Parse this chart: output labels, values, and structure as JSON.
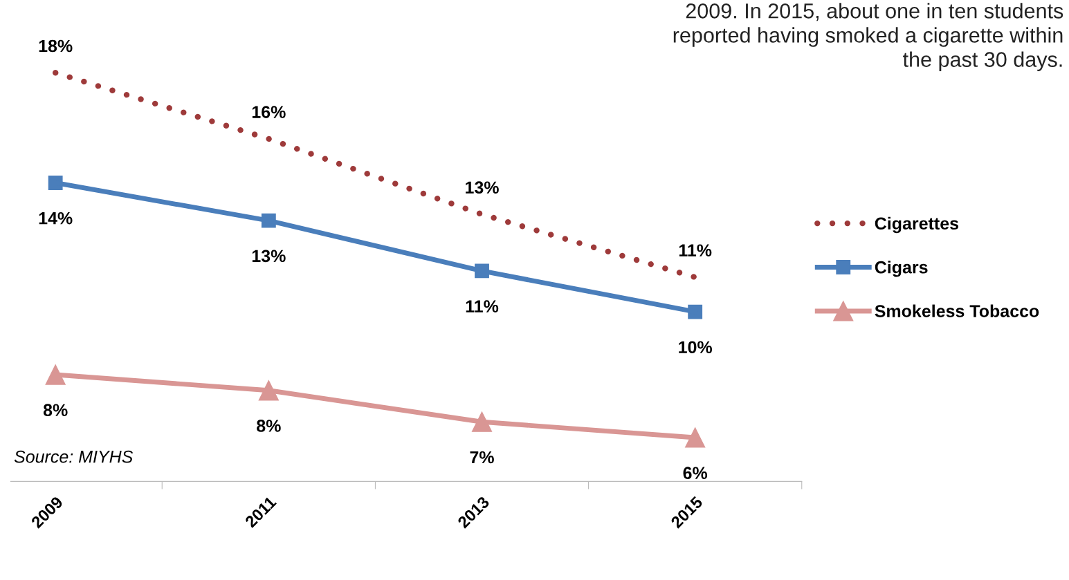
{
  "chart_data": {
    "type": "line",
    "categories": [
      "2009",
      "2011",
      "2013",
      "2015"
    ],
    "series": [
      {
        "name": "Cigarettes",
        "color": "#9e3a3a",
        "values": [
          17.6,
          15.5,
          13.1,
          11.1
        ],
        "value_labels": [
          "18%",
          "16%",
          "13%",
          "11%"
        ],
        "marker": "none",
        "line_style": "dotted"
      },
      {
        "name": "Cigars",
        "color": "#4a7ebb",
        "values": [
          14.1,
          12.9,
          11.3,
          10.0
        ],
        "value_labels": [
          "14%",
          "13%",
          "11%",
          "10%"
        ],
        "marker": "square",
        "line_style": "solid"
      },
      {
        "name": "Smokeless Tobacco",
        "color": "#d99694",
        "values": [
          8.0,
          7.5,
          6.5,
          6.0
        ],
        "value_labels": [
          "8%",
          "8%",
          "7%",
          "6%"
        ],
        "marker": "triangle",
        "line_style": "solid"
      }
    ],
    "tick_labels": "x",
    "legend": "right",
    "grid": false,
    "annotations": [
      "2009. In 2015, about one in ten students\nreported having smoked a cigarette within\nthe past 30 days.",
      "Source: MIYHS"
    ]
  }
}
